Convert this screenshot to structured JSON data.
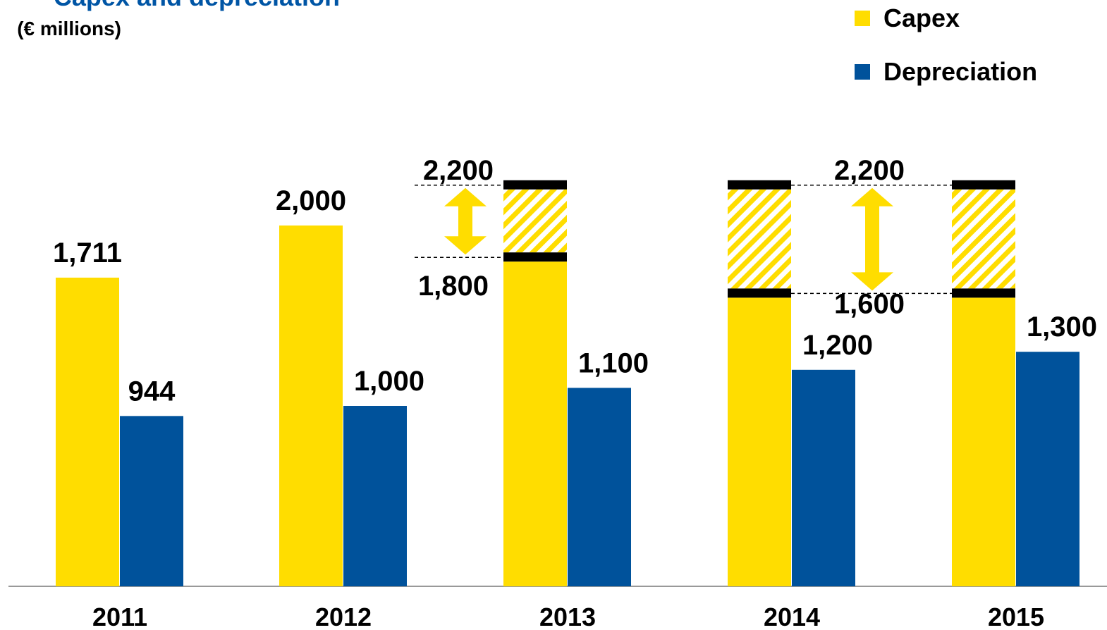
{
  "chart_data": {
    "type": "bar",
    "title": "Capex and depreciation",
    "subtitle": "(€ millions)",
    "categories": [
      "2011",
      "2012",
      "2013",
      "2014",
      "2015"
    ],
    "series": [
      {
        "name": "Capex",
        "color": "#FFDD00",
        "values": [
          1711,
          2000,
          1800,
          1600,
          1600
        ],
        "value_labels": [
          "1,711",
          "2,000",
          "1,800",
          "1,600",
          null
        ]
      },
      {
        "name": "Depreciation",
        "color": "#00529B",
        "values": [
          944,
          1000,
          1100,
          1200,
          1300
        ],
        "value_labels": [
          "944",
          "1,000",
          "1,100",
          "1,200",
          "1,300"
        ]
      }
    ],
    "capex_range_high": {
      "values": [
        null,
        null,
        2200,
        2200,
        2200
      ],
      "value_labels": [
        null,
        null,
        "2,200",
        "2,200",
        null
      ]
    },
    "ylim": [
      0,
      3250
    ],
    "legend": "top-right"
  }
}
